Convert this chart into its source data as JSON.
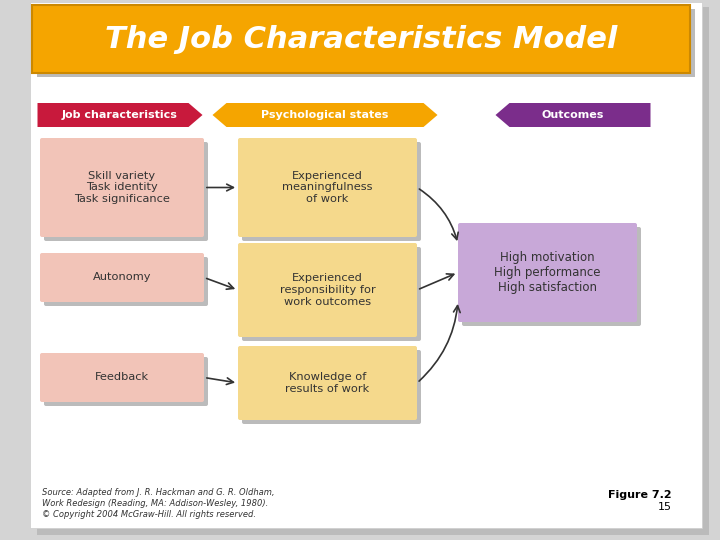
{
  "title": "The Job Characteristics Model",
  "title_bg_color": "#F5A500",
  "title_text_color": "#FFFFFF",
  "bg_color": "#FFFFFF",
  "slide_bg_color": "#D4D4D4",
  "header_labels": [
    "Job characteristics",
    "Psychological states",
    "Outcomes"
  ],
  "header_colors": [
    "#C8193C",
    "#F5A500",
    "#7B2D8B"
  ],
  "header_text_color": "#FFFFFF",
  "left_boxes": [
    "Skill variety\nTask identity\nTask significance",
    "Autonomy",
    "Feedback"
  ],
  "left_box_color": "#F2C4B8",
  "left_box_text_color": "#333333",
  "mid_boxes": [
    "Experienced\nmeaningfulness\nof work",
    "Experienced\nresponsibility for\nwork outcomes",
    "Knowledge of\nresults of work"
  ],
  "mid_box_color": "#F5D98C",
  "mid_box_text_color": "#333333",
  "right_box_text": "High motivation\nHigh performance\nHigh satisfaction",
  "right_box_color": "#C8A8D8",
  "right_box_text_color": "#333333",
  "arrow_color": "#333333",
  "source_line1": "Source: Adapted from J. R. Hackman and G. R. Oldham,",
  "source_line2": "Work Redesign (Reading, MA: Addison-Wesley, 1980).",
  "source_line3": "© Copyright 2004 McGraw-Hill. All rights reserved.",
  "figure_label_bold": "Figure 7.2",
  "figure_label_num": "15"
}
